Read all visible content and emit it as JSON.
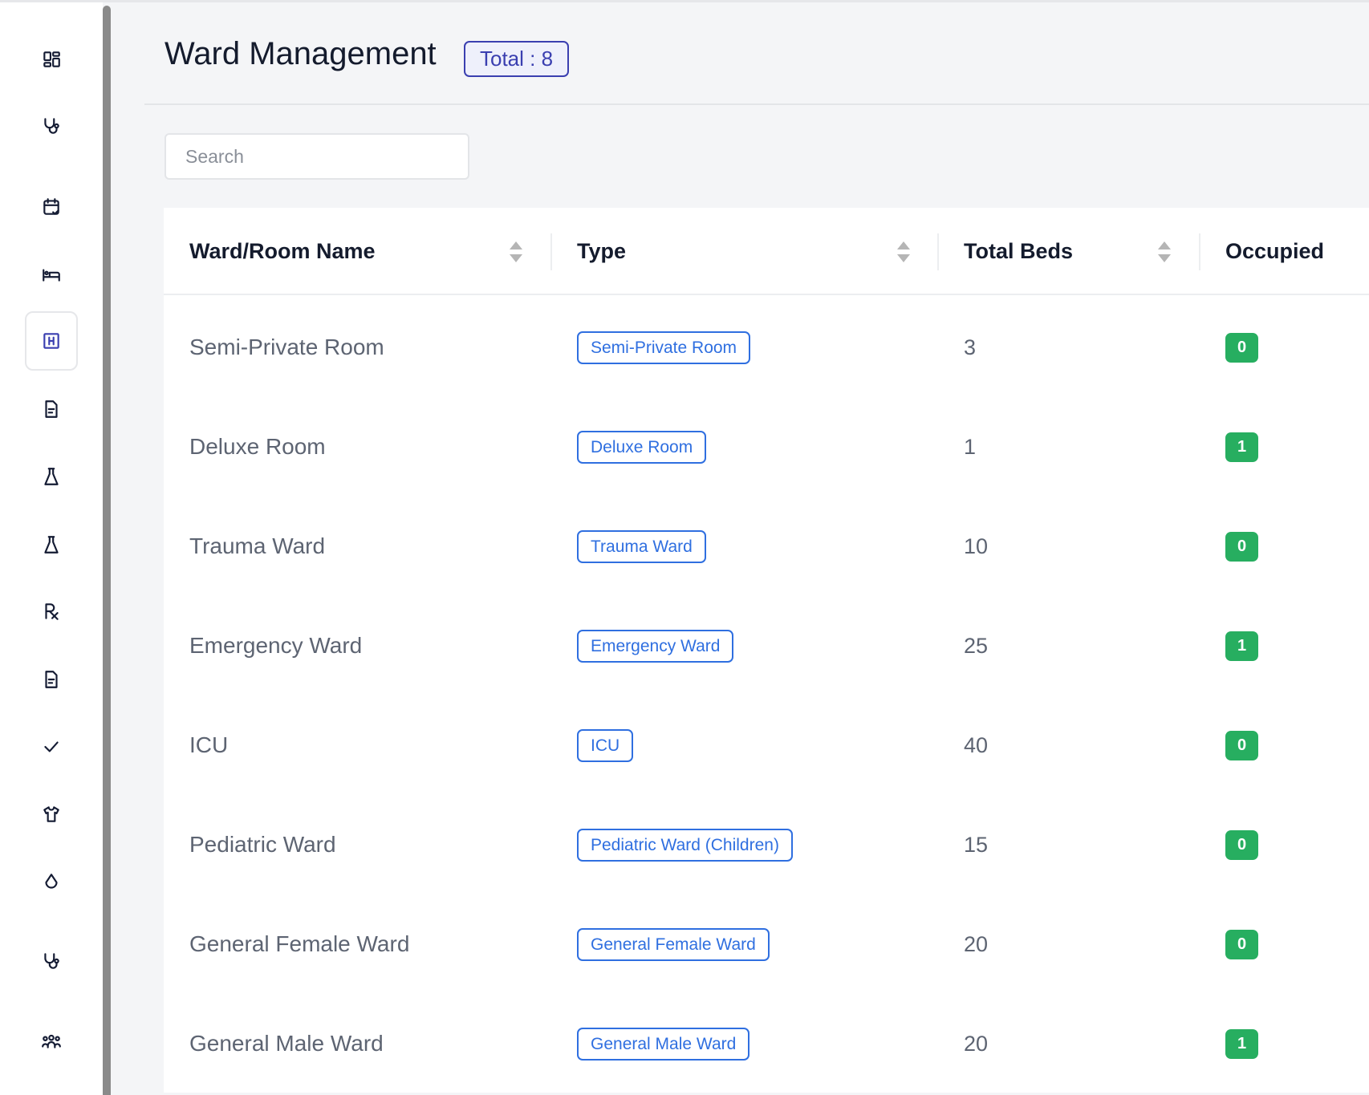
{
  "header": {
    "title": "Ward Management",
    "total_badge": "Total : 8"
  },
  "search": {
    "placeholder": "Search",
    "value": ""
  },
  "sidebar": {
    "icons": [
      "dashboard-icon",
      "stethoscope-icon",
      "calendar-check-icon",
      "bed-icon",
      "hospital-icon",
      "document-icon",
      "flask-icon",
      "flask-icon",
      "prescription-icon",
      "document-icon",
      "check-icon",
      "shirt-icon",
      "droplet-icon",
      "stethoscope-icon",
      "users-icon"
    ],
    "active_index": 4,
    "active_color": "#3a3fb0"
  },
  "table": {
    "columns": [
      "Ward/Room Name",
      "Type",
      "Total Beds",
      "Occupied"
    ],
    "rows": [
      {
        "name": "Semi-Private Room",
        "type": "Semi-Private Room",
        "total_beds": "3",
        "occupied": "0"
      },
      {
        "name": "Deluxe Room",
        "type": "Deluxe Room",
        "total_beds": "1",
        "occupied": "1"
      },
      {
        "name": "Trauma Ward",
        "type": "Trauma Ward",
        "total_beds": "10",
        "occupied": "0"
      },
      {
        "name": "Emergency Ward",
        "type": "Emergency Ward",
        "total_beds": "25",
        "occupied": "1"
      },
      {
        "name": "ICU",
        "type": "ICU",
        "total_beds": "40",
        "occupied": "0"
      },
      {
        "name": "Pediatric Ward",
        "type": "Pediatric Ward (Children)",
        "total_beds": "15",
        "occupied": "0"
      },
      {
        "name": "General Female Ward",
        "type": "General Female Ward",
        "total_beds": "20",
        "occupied": "0"
      },
      {
        "name": "General Male Ward",
        "type": "General Male Ward",
        "total_beds": "20",
        "occupied": "1"
      }
    ]
  },
  "colors": {
    "type_badge": "#2f6fe0",
    "occupied_badge": "#27ae60"
  }
}
